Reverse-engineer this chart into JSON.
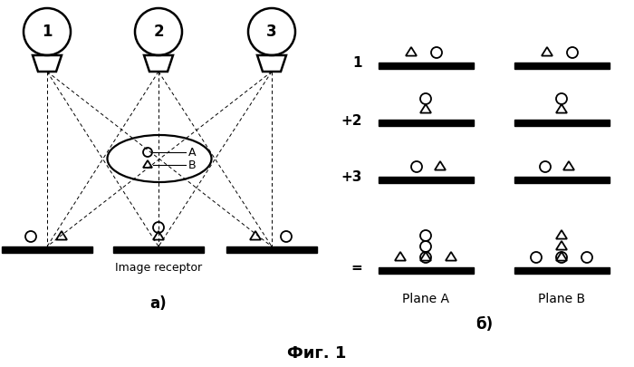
{
  "bg_color": "#ffffff",
  "title": "Фиг. 1",
  "label_a": "a)",
  "label_b": "б)",
  "image_receptor_label": "Image receptor",
  "plane_a_label": "Plane A",
  "plane_b_label": "Plane B",
  "row_labels": [
    "1",
    "+2",
    "+3",
    "="
  ]
}
